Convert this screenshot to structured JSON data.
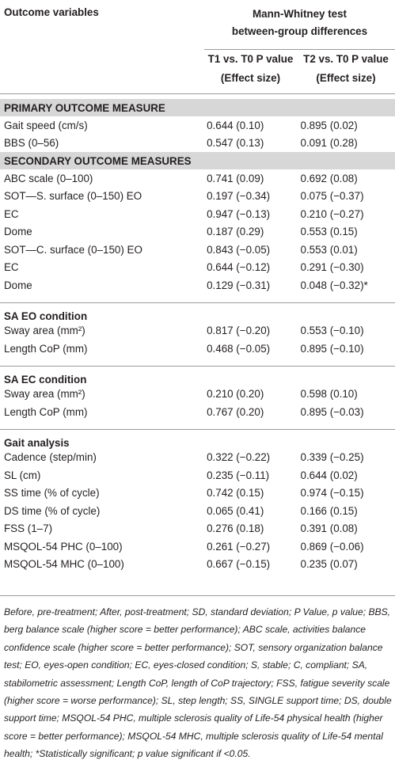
{
  "header": {
    "outcome_label": "Outcome variables",
    "test_title": "Mann-Whitney test",
    "test_subtitle": "between-group differences",
    "columns": [
      [
        "T1 vs. T0 P value",
        "(Effect size)"
      ],
      [
        "T2 vs. T0 P value",
        "(Effect size)"
      ]
    ]
  },
  "sections": [
    {
      "title": "PRIMARY OUTCOME MEASURE",
      "shaded": true,
      "rows": [
        [
          "Gait speed (cm/s)",
          "0.644 (0.10)",
          "0.895 (0.02)"
        ],
        [
          "BBS (0–56)",
          "0.547 (0.13)",
          "0.091 (0.28)"
        ]
      ]
    },
    {
      "title": "SECONDARY OUTCOME MEASURES",
      "shaded": true,
      "rows": [
        [
          "ABC scale (0–100)",
          "0.741 (0.09)",
          "0.692 (0.08)"
        ],
        [
          "SOT—S. surface (0–150) EO",
          "0.197 (−0.34)",
          "0.075 (−0.37)"
        ],
        [
          "EC",
          "0.947 (−0.13)",
          "0.210 (−0.27)"
        ],
        [
          "Dome",
          "0.187 (0.29)",
          "0.553 (0.15)"
        ],
        [
          "SOT—C. surface (0–150) EO",
          "0.843 (−0.05)",
          "0.553 (0.01)"
        ],
        [
          "EC",
          "0.644 (−0.12)",
          "0.291 (−0.30)"
        ],
        [
          "Dome",
          "0.129 (−0.31)",
          "0.048 (−0.32)*"
        ]
      ]
    },
    {
      "title": "SA EO condition",
      "shaded": false,
      "rows": [
        [
          "Sway area (mm²)",
          "0.817 (−0.20)",
          "0.553 (−0.10)"
        ],
        [
          "Length CoP (mm)",
          "0.468 (−0.05)",
          "0.895 (−0.10)"
        ]
      ]
    },
    {
      "title": "SA EC condition",
      "shaded": false,
      "rows": [
        [
          "Sway area (mm²)",
          "0.210 (0.20)",
          "0.598 (0.10)"
        ],
        [
          "Length CoP (mm)",
          "0.767 (0.20)",
          "0.895 (−0.03)"
        ]
      ]
    },
    {
      "title": "Gait analysis",
      "shaded": false,
      "rows": [
        [
          "Cadence (step/min)",
          "0.322 (−0.22)",
          "0.339 (−0.25)"
        ],
        [
          "SL (cm)",
          "0.235 (−0.11)",
          "0.644 (0.02)"
        ],
        [
          "SS time (% of cycle)",
          "0.742 (0.15)",
          "0.974 (−0.15)"
        ],
        [
          "DS time (% of cycle)",
          "0.065 (0.41)",
          "0.166 (0.15)"
        ],
        [
          "FSS (1–7)",
          "0.276 (0.18)",
          "0.391 (0.08)"
        ],
        [
          "MSQOL-54 PHC (0–100)",
          "0.261 (−0.27)",
          "0.869 (−0.06)"
        ],
        [
          "MSQOL-54 MHC (0–100)",
          "0.667 (−0.15)",
          "0.235 (0.07)"
        ]
      ]
    }
  ],
  "footnote": "Before, pre-treatment; After, post-treatment; SD, standard deviation; P Value, p value; BBS, berg balance scale (higher score = better performance); ABC scale, activities balance confidence scale (higher score = better performance); SOT, sensory organization balance test; EO, eyes-open condition; EC, eyes-closed condition; S, stable; C, compliant; SA, stabilometric assessment; Length CoP, length of CoP trajectory; FSS, fatigue severity scale (higher score = worse performance); SL, step length; SS, SINGLE support time; DS, double support time; MSQOL-54 PHC, multiple sclerosis quality of Life-54 physical health (higher score = better performance); MSQOL-54 MHC, multiple sclerosis quality of Life-54 mental health; *Statistically significant; p value significant if <0.05."
}
